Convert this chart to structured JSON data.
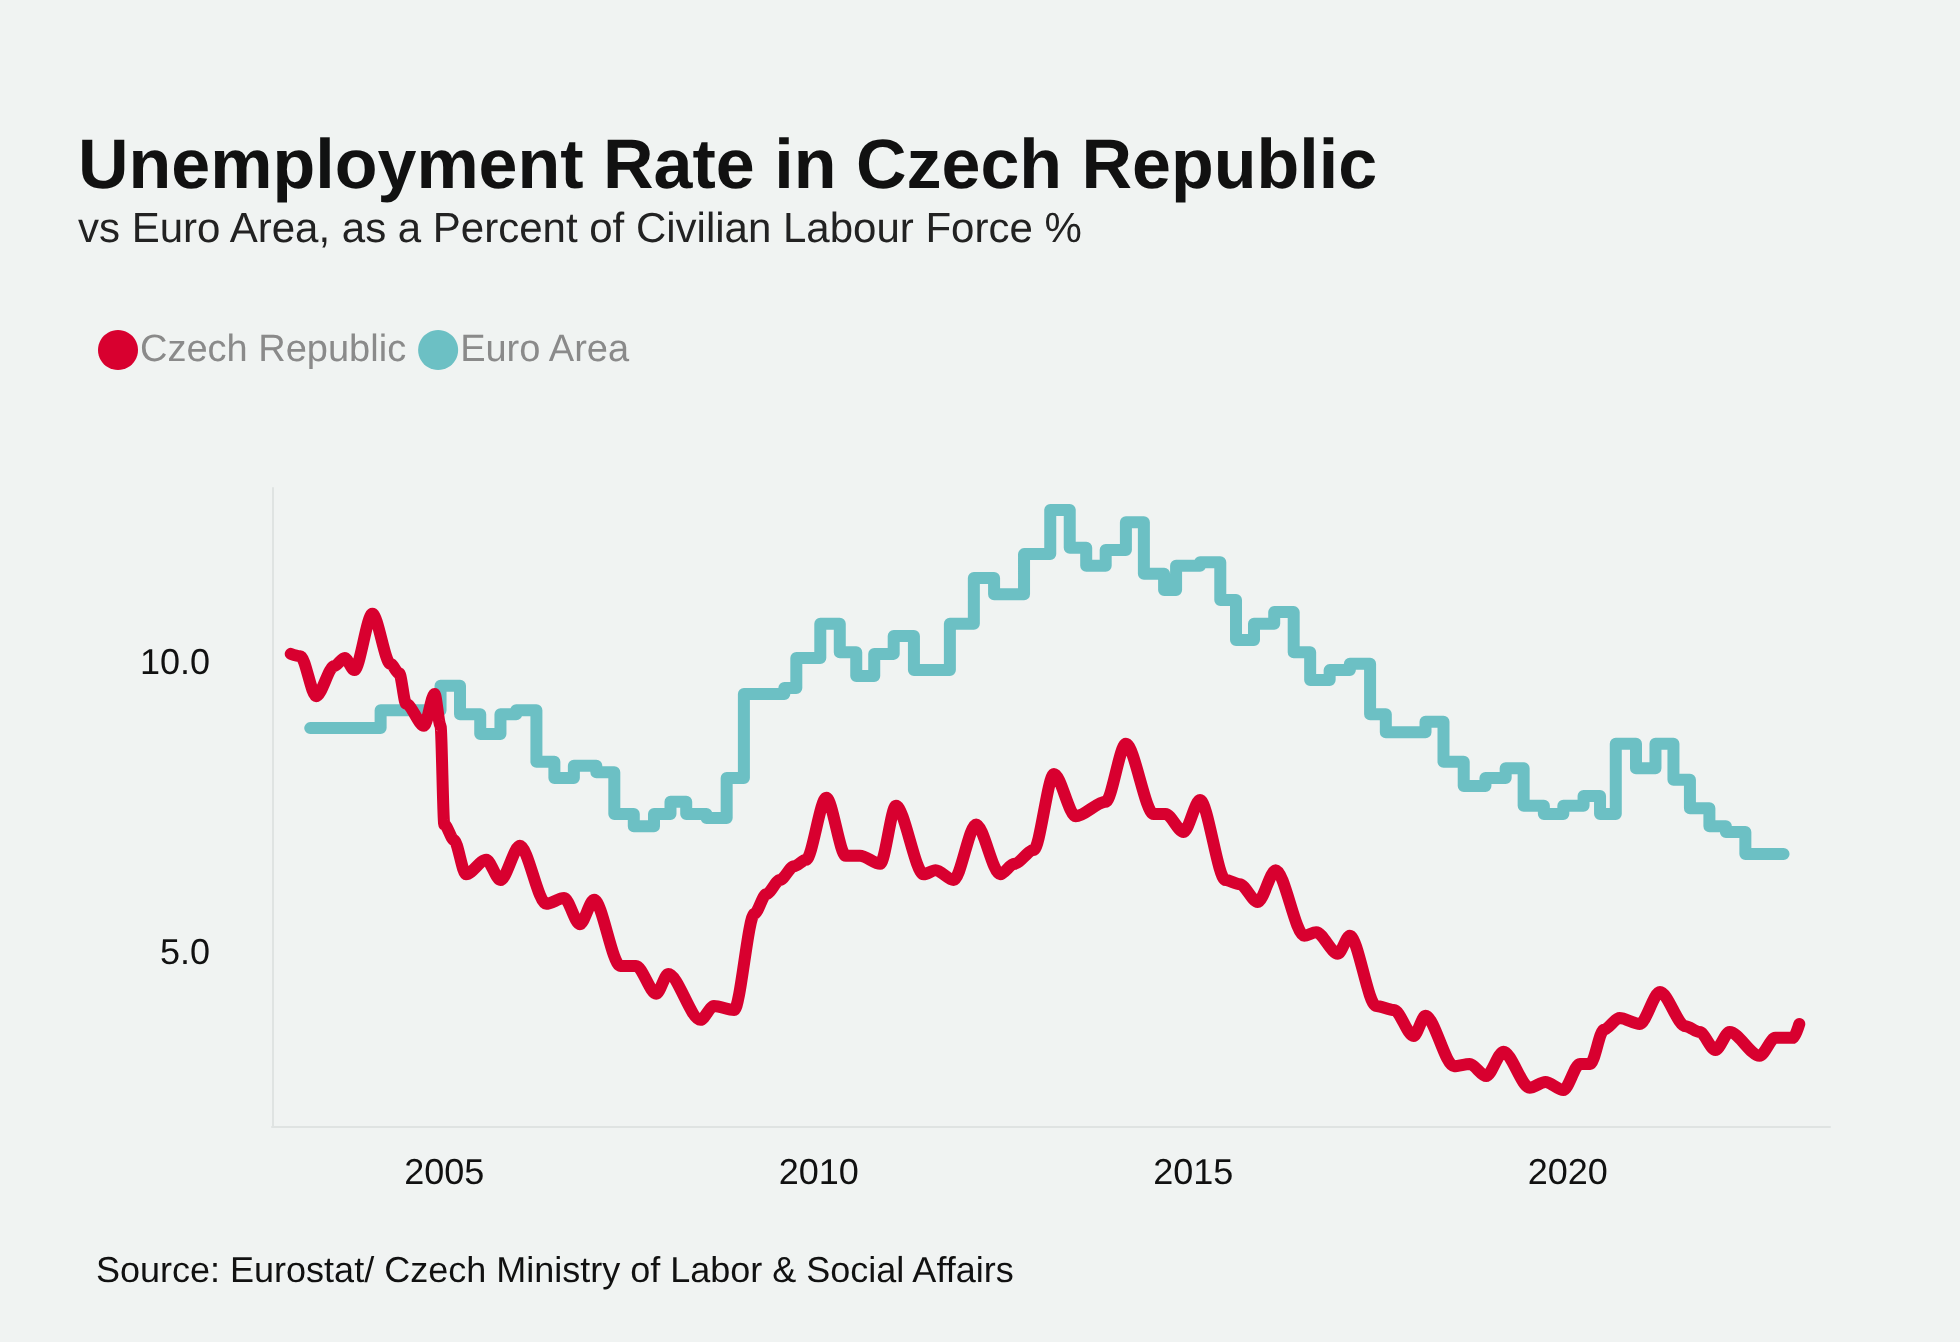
{
  "chart_data": {
    "type": "line",
    "title": "Unemployment Rate in Czech Republic",
    "subtitle": "vs Euro Area, as a Percent of Civilian Labour Force %",
    "annotations": [
      "Source: Eurostat/ Czech Ministry of Labor & Social Affairs"
    ],
    "xlim": [
      2002.7,
      2023.5
    ],
    "xticks": [
      2005,
      2010,
      2015,
      2020
    ],
    "ylim": [
      2,
      13
    ],
    "yticks": [
      {
        "value": 5,
        "label": "5.0"
      },
      {
        "value": 10,
        "label": "10.0"
      }
    ],
    "grid": false,
    "legend": "top left",
    "marker": "none",
    "line_style": "solid",
    "series": [
      {
        "name": "Czech Republic",
        "color": "#d8002f",
        "x": [
          2002.95,
          2003.08,
          2003.29,
          2003.53,
          2003.67,
          2003.8,
          2004.04,
          2004.28,
          2004.4,
          2004.49,
          2004.73,
          2004.87,
          2004.95,
          2005.0,
          2005.13,
          2005.29,
          2005.56,
          2005.75,
          2006.01,
          2006.36,
          2006.6,
          2006.81,
          2007.0,
          2007.35,
          2007.56,
          2007.83,
          2007.99,
          2008.42,
          2008.6,
          2008.87,
          2009.14,
          2009.3,
          2009.48,
          2009.67,
          2009.83,
          2010.1,
          2010.36,
          2010.55,
          2010.82,
          2011.03,
          2011.4,
          2011.56,
          2011.8,
          2012.1,
          2012.42,
          2012.61,
          2012.87,
          2013.14,
          2013.43,
          2013.83,
          2014.1,
          2014.47,
          2014.63,
          2014.87,
          2015.09,
          2015.43,
          2015.62,
          2015.86,
          2016.1,
          2016.48,
          2016.64,
          2016.93,
          2017.09,
          2017.44,
          2017.68,
          2017.94,
          2018.1,
          2018.48,
          2018.69,
          2018.91,
          2019.14,
          2019.49,
          2019.7,
          2019.94,
          2020.16,
          2020.3,
          2020.48,
          2020.69,
          2020.96,
          2021.23,
          2021.57,
          2021.76,
          2021.97,
          2022.16,
          2022.56,
          2022.77,
          2023.01,
          2023.09
        ],
        "values": [
          10.14,
          10.1,
          9.41,
          9.93,
          10.07,
          9.86,
          10.83,
          9.97,
          9.8,
          9.28,
          8.9,
          9.45,
          8.9,
          7.2,
          6.93,
          6.34,
          6.59,
          6.24,
          6.83,
          5.83,
          5.93,
          5.48,
          5.9,
          4.76,
          4.76,
          4.28,
          4.62,
          3.83,
          4.07,
          4.0,
          5.66,
          6.0,
          6.24,
          6.48,
          6.59,
          7.66,
          6.66,
          6.66,
          6.52,
          7.52,
          6.34,
          6.41,
          6.24,
          7.2,
          6.34,
          6.52,
          6.76,
          8.07,
          7.34,
          7.59,
          8.59,
          7.38,
          7.38,
          7.07,
          7.62,
          6.24,
          6.17,
          5.86,
          6.41,
          5.28,
          5.34,
          4.97,
          5.28,
          4.07,
          4.0,
          3.55,
          3.9,
          3.03,
          3.07,
          2.86,
          3.28,
          2.66,
          2.76,
          2.62,
          3.07,
          3.07,
          3.66,
          3.86,
          3.76,
          4.31,
          3.72,
          3.62,
          3.31,
          3.62,
          3.21,
          3.52,
          3.52,
          3.76
        ]
      },
      {
        "name": "Euro Area",
        "type": "step",
        "color": "#6cc0c4",
        "x": [
          2003.21,
          2004.15,
          2004.95,
          2005.21,
          2005.48,
          2005.75,
          2005.96,
          2006.23,
          2006.47,
          2006.73,
          2007.03,
          2007.27,
          2007.53,
          2007.8,
          2008.02,
          2008.23,
          2008.5,
          2008.77,
          2009.0,
          2009.54,
          2009.7,
          2010.02,
          2010.28,
          2010.5,
          2010.74,
          2011.0,
          2011.27,
          2011.75,
          2012.07,
          2012.34,
          2012.74,
          2013.09,
          2013.35,
          2013.57,
          2013.83,
          2014.1,
          2014.34,
          2014.61,
          2014.77,
          2015.09,
          2015.36,
          2015.57,
          2015.81,
          2016.08,
          2016.34,
          2016.56,
          2016.82,
          2017.09,
          2017.36,
          2017.57,
          2018.1,
          2018.34,
          2018.61,
          2018.9,
          2019.17,
          2019.41,
          2019.68,
          2019.94,
          2020.21,
          2020.43,
          2020.64,
          2020.91,
          2021.17,
          2021.41,
          2021.63,
          2021.89,
          2022.11,
          2022.37,
          2022.88
        ],
        "values": [
          8.86,
          9.17,
          9.59,
          9.1,
          8.76,
          9.1,
          9.17,
          8.28,
          8.0,
          8.21,
          8.1,
          7.38,
          7.17,
          7.38,
          7.59,
          7.38,
          7.31,
          8.0,
          9.45,
          9.55,
          10.07,
          10.66,
          10.17,
          9.76,
          10.14,
          10.45,
          9.86,
          10.66,
          11.45,
          11.17,
          11.86,
          12.62,
          11.97,
          11.66,
          11.93,
          12.41,
          11.52,
          11.24,
          11.66,
          11.72,
          11.07,
          10.38,
          10.66,
          10.86,
          10.17,
          9.69,
          9.86,
          9.97,
          9.1,
          8.79,
          8.97,
          8.28,
          7.86,
          8.0,
          8.17,
          7.52,
          7.38,
          7.52,
          7.69,
          7.38,
          8.59,
          8.17,
          8.59,
          7.97,
          7.48,
          7.17,
          7.07,
          6.69,
          6.69
        ]
      }
    ]
  }
}
